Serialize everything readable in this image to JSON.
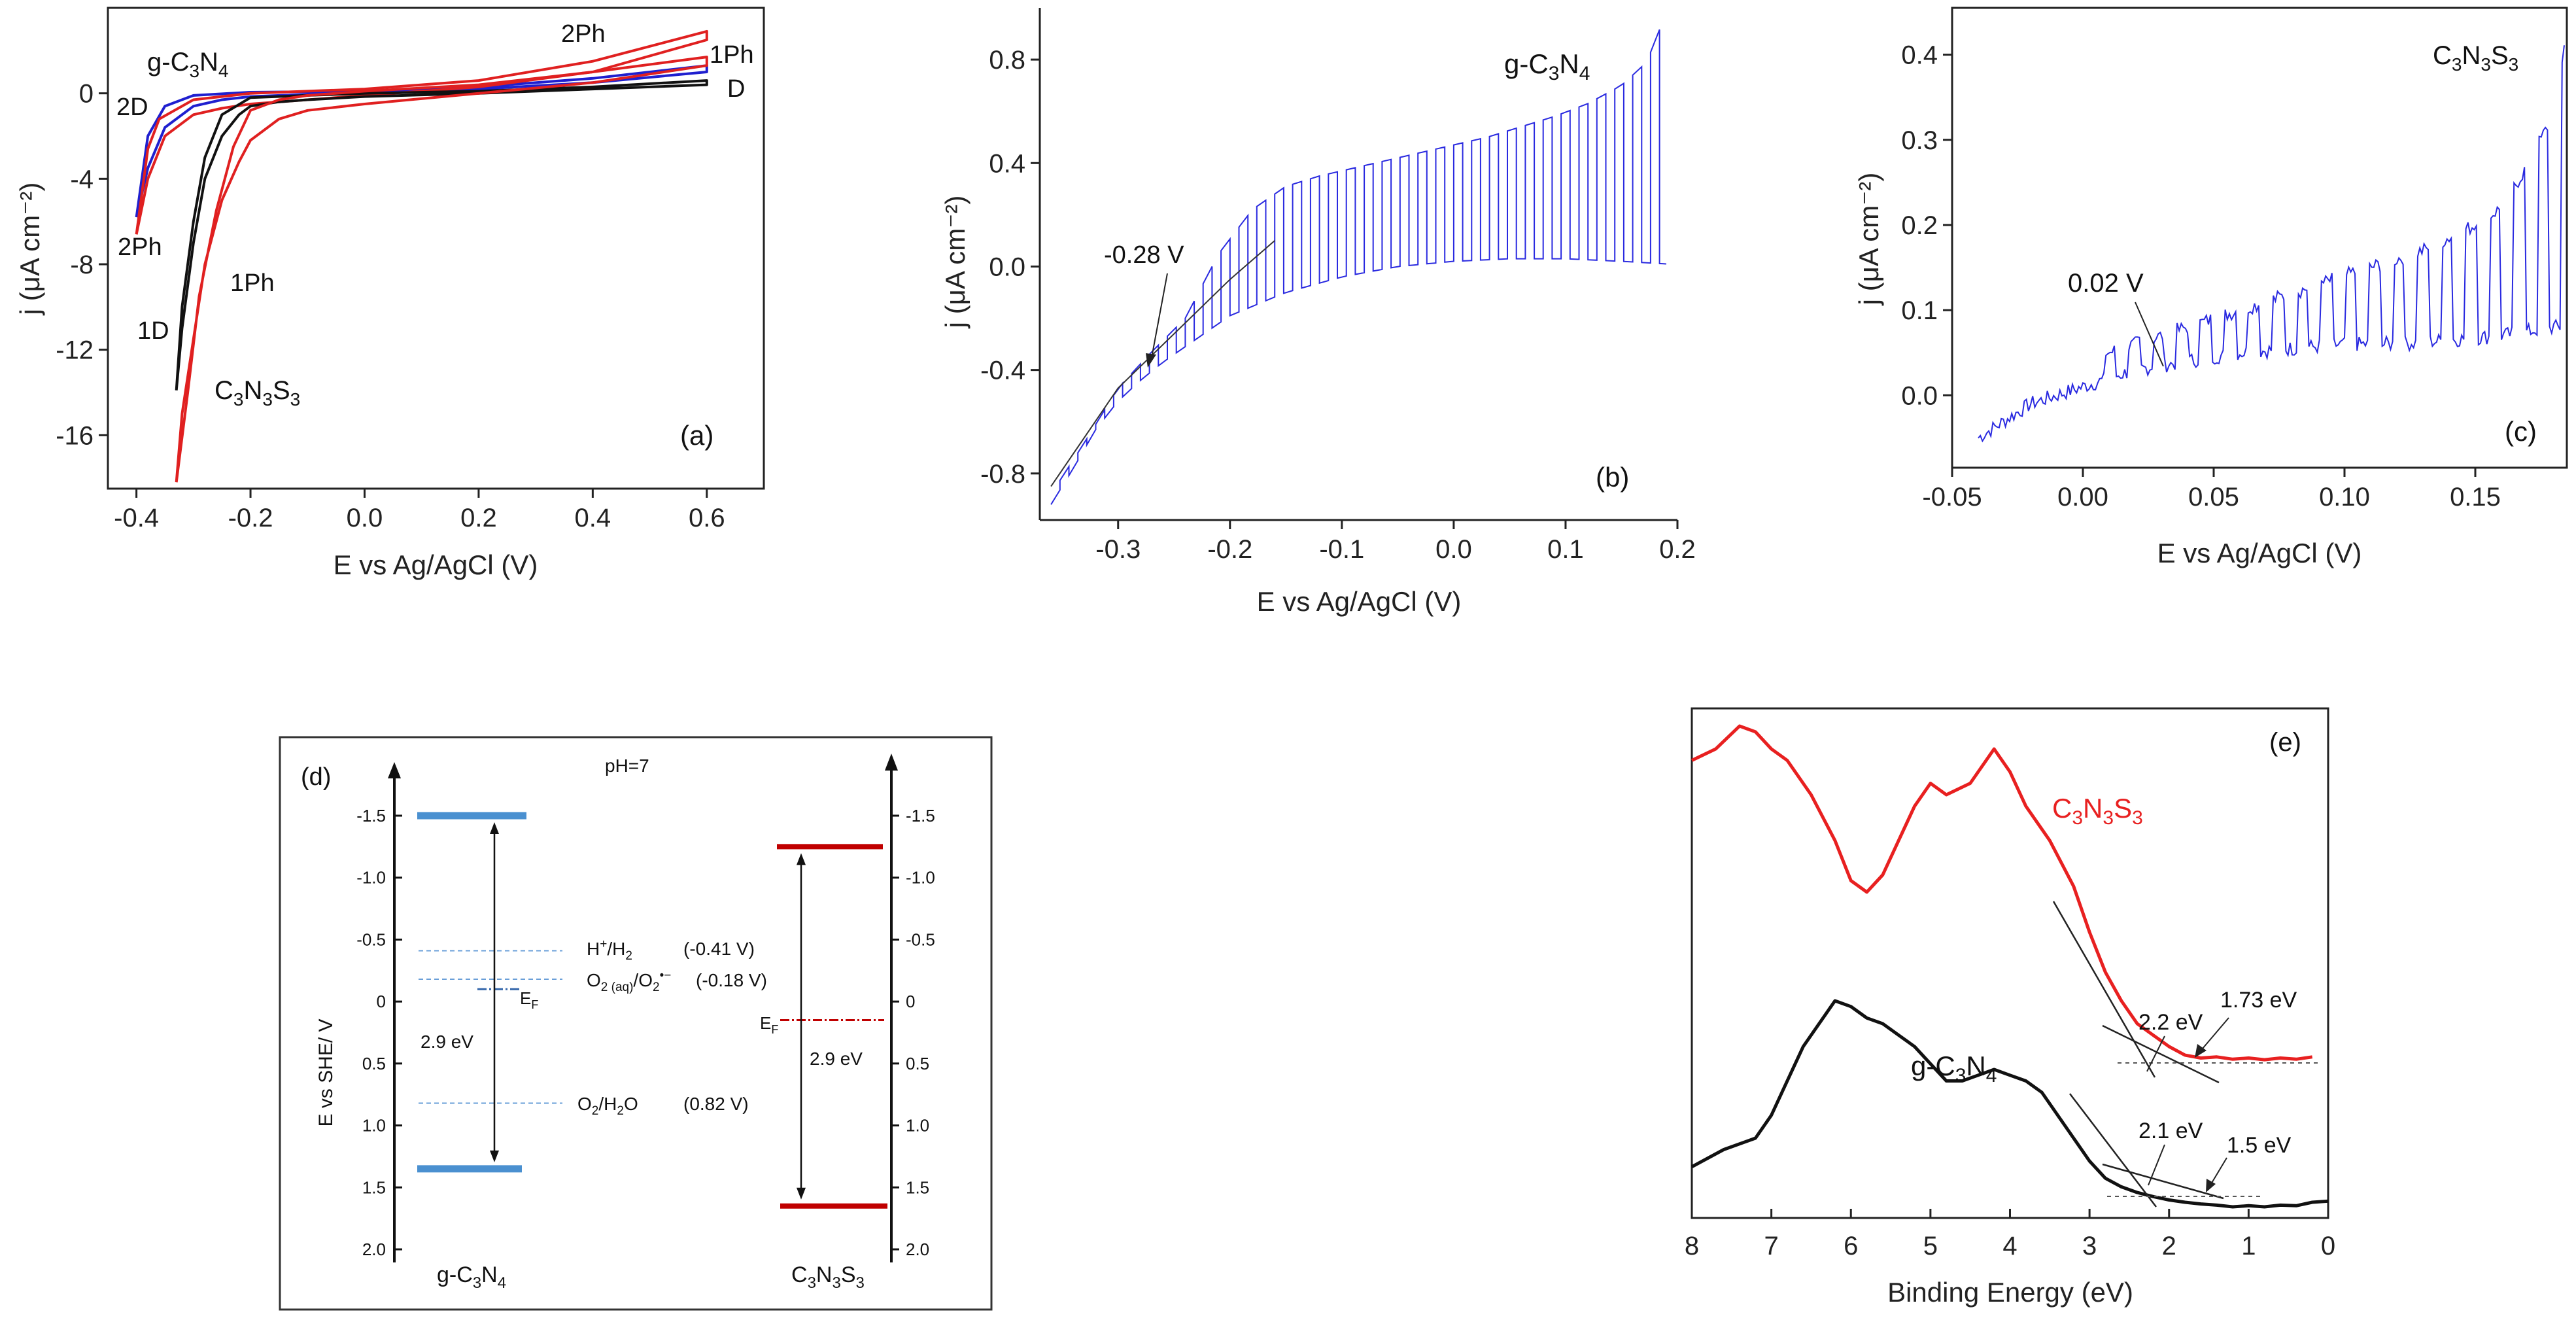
{
  "chart_data": [
    {
      "panel": "(a)",
      "type": "line",
      "xlabel": "E vs Ag/AgCl (V)",
      "ylabel": "j (μA cm⁻²)",
      "xlim": [
        -0.45,
        0.7
      ],
      "ylim": [
        -18.5,
        4
      ],
      "xticks": [
        -0.4,
        -0.2,
        0.0,
        0.2,
        0.4,
        0.6
      ],
      "xtick_labels": [
        "-0.4",
        "-0.2",
        "0.0",
        "0.2",
        "0.4",
        "0.6"
      ],
      "yticks": [
        0,
        -4,
        -8,
        -12,
        -16
      ],
      "ytick_labels": [
        "0",
        "-4",
        "-8",
        "-12",
        "-16"
      ],
      "series": [
        {
          "name": "g-C3N4 Dark (2D)",
          "color": "#1f1fcf",
          "x": [
            -0.4,
            -0.38,
            -0.35,
            -0.3,
            -0.25,
            -0.2,
            -0.1,
            0.0,
            0.2,
            0.4,
            0.6,
            0.6,
            0.4,
            0.2,
            0.0,
            -0.2,
            -0.3,
            -0.35,
            -0.38,
            -0.4
          ],
          "y": [
            -5.8,
            -3.5,
            -1.6,
            -0.6,
            -0.3,
            -0.15,
            -0.05,
            0.0,
            0.2,
            0.5,
            1.0,
            1.3,
            0.7,
            0.3,
            0.1,
            0.05,
            -0.1,
            -0.6,
            -2.0,
            -5.8
          ]
        },
        {
          "name": "g-C3N4 Light (2Ph)",
          "color": "#e02020",
          "x": [
            -0.4,
            -0.38,
            -0.35,
            -0.3,
            -0.25,
            -0.2,
            -0.1,
            0.0,
            0.2,
            0.4,
            0.6,
            0.6,
            0.4,
            0.2,
            0.0,
            -0.2,
            -0.3,
            -0.36,
            -0.38,
            -0.4
          ],
          "y": [
            -6.6,
            -4.0,
            -2.0,
            -1.0,
            -0.7,
            -0.5,
            -0.3,
            -0.1,
            0.3,
            1.0,
            2.5,
            2.9,
            1.5,
            0.6,
            0.2,
            0.0,
            -0.3,
            -1.2,
            -2.6,
            -6.6
          ]
        },
        {
          "name": "C3N3S3 Dark (1D)",
          "color": "#111111",
          "x": [
            -0.33,
            -0.32,
            -0.3,
            -0.28,
            -0.25,
            -0.22,
            -0.2,
            -0.15,
            -0.1,
            0.0,
            0.2,
            0.4,
            0.6,
            0.6,
            0.4,
            0.2,
            0.0,
            -0.1,
            -0.2,
            -0.25,
            -0.28,
            -0.3,
            -0.32,
            -0.33
          ],
          "y": [
            -13.9,
            -11.0,
            -7.0,
            -4.0,
            -2.0,
            -1.0,
            -0.6,
            -0.4,
            -0.3,
            -0.15,
            0.0,
            0.2,
            0.4,
            0.6,
            0.3,
            0.1,
            0.0,
            -0.1,
            -0.2,
            -1.0,
            -3.0,
            -6.0,
            -10.0,
            -13.9
          ]
        },
        {
          "name": "C3N3S3 Light (1Ph)",
          "color": "#e02020",
          "x": [
            -0.33,
            -0.32,
            -0.3,
            -0.28,
            -0.25,
            -0.22,
            -0.2,
            -0.15,
            -0.1,
            0.0,
            0.2,
            0.4,
            0.6,
            0.6,
            0.4,
            0.2,
            0.0,
            -0.1,
            -0.15,
            -0.2,
            -0.23,
            -0.26,
            -0.29,
            -0.31,
            -0.33
          ],
          "y": [
            -18.2,
            -15.0,
            -11.5,
            -8.0,
            -5.0,
            -3.2,
            -2.2,
            -1.2,
            -0.8,
            -0.5,
            0.0,
            0.5,
            1.3,
            1.7,
            1.0,
            0.4,
            0.1,
            -0.1,
            -0.3,
            -0.8,
            -2.5,
            -5.5,
            -9.5,
            -14.0,
            -18.2
          ]
        }
      ],
      "annotations": [
        "g-C",
        "3",
        "N",
        "4",
        "2D",
        "2Ph",
        "1D",
        "1Ph",
        "C",
        "3",
        "N",
        "3",
        "S",
        "3",
        "2Ph",
        "1Ph",
        "D",
        "(a)"
      ]
    },
    {
      "panel": "(b)",
      "type": "line",
      "xlabel": "E vs Ag/AgCl (V)",
      "ylabel": "j (μA cm⁻²)",
      "xlim": [
        -0.37,
        0.2
      ],
      "ylim": [
        -0.98,
        1.0
      ],
      "xticks": [
        -0.3,
        -0.2,
        -0.1,
        0.0,
        0.1,
        0.2
      ],
      "xtick_labels": [
        "-0.3",
        "-0.2",
        "-0.1",
        "0.0",
        "0.1",
        "0.2"
      ],
      "yticks": [
        0.8,
        0.4,
        0.0,
        -0.4,
        -0.8
      ],
      "ytick_labels": [
        "0.8",
        "0.4",
        "0.0",
        "-0.4",
        "-0.8"
      ],
      "series": [
        {
          "name": "dark baseline",
          "color": "#2222dd",
          "x": [
            -0.36,
            -0.34,
            -0.32,
            -0.3,
            -0.28,
            -0.26,
            -0.24,
            -0.22,
            -0.2,
            -0.15,
            -0.1,
            -0.05,
            0.0,
            0.05,
            0.1,
            0.15,
            0.19
          ],
          "y": [
            -0.92,
            -0.78,
            -0.63,
            -0.52,
            -0.44,
            -0.37,
            -0.31,
            -0.25,
            -0.19,
            -0.1,
            -0.04,
            0.0,
            0.02,
            0.03,
            0.03,
            0.02,
            0.01
          ]
        },
        {
          "name": "light envelope",
          "color": "#2222dd",
          "x": [
            -0.36,
            -0.33,
            -0.3,
            -0.27,
            -0.24,
            -0.21,
            -0.18,
            -0.15,
            -0.12,
            -0.09,
            -0.06,
            -0.03,
            0.0,
            0.03,
            0.06,
            0.09,
            0.12,
            0.15,
            0.17,
            0.18,
            0.19
          ],
          "y": [
            -0.88,
            -0.68,
            -0.47,
            -0.33,
            -0.2,
            0.05,
            0.22,
            0.31,
            0.35,
            0.38,
            0.41,
            0.44,
            0.47,
            0.5,
            0.54,
            0.58,
            0.63,
            0.7,
            0.78,
            0.86,
            1.0
          ]
        }
      ],
      "annotations": [
        "g-C",
        "3",
        "N",
        "4",
        "-0.28 V",
        "(b)"
      ]
    },
    {
      "panel": "(c)",
      "type": "line",
      "xlabel": "E vs Ag/AgCl (V)",
      "ylabel": "j (μA cm⁻²)",
      "xlim": [
        -0.05,
        0.185
      ],
      "ylim": [
        -0.085,
        0.455
      ],
      "xticks": [
        -0.05,
        0.0,
        0.05,
        0.1,
        0.15
      ],
      "xtick_labels": [
        "-0.05",
        "0.00",
        "0.05",
        "0.10",
        "0.15"
      ],
      "yticks": [
        0.4,
        0.3,
        0.2,
        0.1,
        0.0
      ],
      "ytick_labels": [
        "0.4",
        "0.3",
        "0.2",
        "0.1",
        "0.0"
      ],
      "series": [
        {
          "name": "dark baseline",
          "color": "#2222dd",
          "x": [
            -0.04,
            -0.03,
            -0.02,
            -0.01,
            0.0,
            0.02,
            0.04,
            0.06,
            0.08,
            0.1,
            0.12,
            0.14,
            0.16,
            0.18
          ],
          "y": [
            -0.05,
            -0.03,
            -0.01,
            0.0,
            0.01,
            0.03,
            0.04,
            0.05,
            0.055,
            0.06,
            0.06,
            0.065,
            0.07,
            0.08
          ]
        },
        {
          "name": "light envelope",
          "color": "#2222dd",
          "x": [
            0.01,
            0.03,
            0.05,
            0.07,
            0.09,
            0.11,
            0.13,
            0.15,
            0.16,
            0.17,
            0.18,
            0.185
          ],
          "y": [
            0.05,
            0.07,
            0.09,
            0.11,
            0.13,
            0.15,
            0.17,
            0.2,
            0.22,
            0.27,
            0.33,
            0.43
          ]
        }
      ],
      "annotations": [
        "C",
        "3",
        "N",
        "3",
        "S",
        "3",
        "0.02 V",
        "(c)"
      ]
    },
    {
      "panel": "(d)",
      "type": "diagram",
      "ylabel": "E vs SHE/ V",
      "yticks": [
        -1.5,
        -1.0,
        -0.5,
        0,
        0.5,
        1.0,
        1.5,
        2.0
      ],
      "ytick_labels": [
        "-1.5",
        "-1.0",
        "-0.5",
        "0",
        "0.5",
        "1.0",
        "1.5",
        "2.0"
      ],
      "title": "pH=7",
      "materials": [
        {
          "name": "g-C3N4",
          "label_parts": [
            "g-C",
            "3",
            "N",
            "4"
          ],
          "cb": -1.5,
          "vb": 1.35,
          "ef": -0.1,
          "gap_label": "2.9 eV",
          "color": "#4a90d0"
        },
        {
          "name": "C3N3S3",
          "label_parts": [
            "C",
            "3",
            "N",
            "3",
            "S",
            "3"
          ],
          "cb": -1.25,
          "vb": 1.65,
          "ef": 0.15,
          "gap_label": "2.9 eV",
          "color": "#c00000"
        }
      ],
      "references": [
        {
          "name": "H+/H2",
          "potential": -0.41,
          "value_label": "(-0.41 V)",
          "parts": [
            "H",
            "+",
            "/H",
            "2"
          ]
        },
        {
          "name": "O2(aq)/O2•−",
          "potential": -0.18,
          "value_label": "(-0.18 V)",
          "parts": [
            "O",
            "2 (aq)",
            "/O",
            "2",
            "•−"
          ]
        },
        {
          "name": "O2/H2O",
          "potential": 0.82,
          "value_label": "(0.82 V)",
          "parts": [
            "O",
            "2",
            "/H",
            "2",
            "O"
          ]
        }
      ],
      "annotations": [
        "(d)",
        "E",
        "F",
        "E",
        "F"
      ]
    },
    {
      "panel": "(e)",
      "type": "line",
      "xlabel": "Binding Energy (eV)",
      "xlim": [
        8,
        0
      ],
      "xticks": [
        8,
        7,
        6,
        5,
        4,
        3,
        2,
        1,
        0
      ],
      "xtick_labels": [
        "8",
        "7",
        "6",
        "5",
        "4",
        "3",
        "2",
        "1",
        "0"
      ],
      "series": [
        {
          "name": "C3N3S3",
          "color": "#e82020",
          "x": [
            8.0,
            7.7,
            7.4,
            7.2,
            7.0,
            6.8,
            6.5,
            6.2,
            6.0,
            5.8,
            5.6,
            5.4,
            5.2,
            5.0,
            4.8,
            4.5,
            4.2,
            4.0,
            3.8,
            3.5,
            3.2,
            3.0,
            2.8,
            2.6,
            2.4,
            2.2,
            2.0,
            1.8,
            1.6,
            1.4,
            1.2,
            1.0,
            0.8,
            0.6,
            0.4,
            0.2
          ],
          "y": [
            0.78,
            0.8,
            0.84,
            0.83,
            0.8,
            0.78,
            0.72,
            0.64,
            0.57,
            0.55,
            0.58,
            0.64,
            0.7,
            0.74,
            0.72,
            0.74,
            0.8,
            0.76,
            0.7,
            0.64,
            0.56,
            0.48,
            0.41,
            0.36,
            0.32,
            0.3,
            0.28,
            0.265,
            0.26,
            0.262,
            0.258,
            0.26,
            0.257,
            0.26,
            0.258,
            0.262
          ]
        },
        {
          "name": "g-C3N4",
          "color": "#111111",
          "x": [
            8.0,
            7.6,
            7.2,
            7.0,
            6.8,
            6.6,
            6.4,
            6.2,
            6.0,
            5.8,
            5.6,
            5.4,
            5.2,
            5.0,
            4.8,
            4.6,
            4.4,
            4.2,
            4.0,
            3.8,
            3.6,
            3.4,
            3.2,
            3.0,
            2.8,
            2.6,
            2.4,
            2.2,
            2.0,
            1.8,
            1.6,
            1.4,
            1.2,
            1.0,
            0.8,
            0.6,
            0.4,
            0.2,
            0.0
          ],
          "y": [
            0.07,
            0.1,
            0.12,
            0.16,
            0.22,
            0.28,
            0.32,
            0.36,
            0.35,
            0.33,
            0.32,
            0.3,
            0.28,
            0.25,
            0.22,
            0.22,
            0.23,
            0.24,
            0.23,
            0.22,
            0.2,
            0.16,
            0.12,
            0.08,
            0.05,
            0.035,
            0.025,
            0.018,
            0.012,
            0.008,
            0.005,
            0.003,
            0.0,
            0.002,
            0.0,
            0.003,
            0.002,
            0.008,
            0.01
          ]
        }
      ],
      "annotations": [
        "C",
        "3",
        "N",
        "3",
        "S",
        "3",
        "g-C",
        "3",
        "N",
        "4",
        "2.2 eV",
        "1.73 eV",
        "2.1 eV",
        "1.5 eV",
        "(e)"
      ]
    }
  ]
}
